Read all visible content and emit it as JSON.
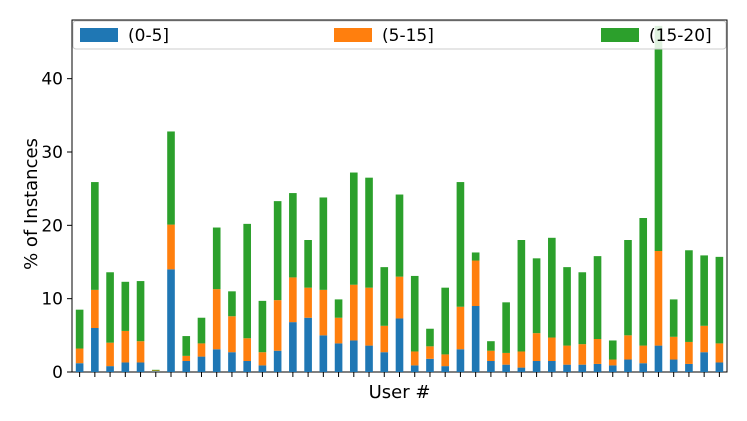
{
  "chart_data": {
    "type": "bar",
    "stacked": true,
    "xlabel": "User #",
    "ylabel": "% of Instances",
    "ylim": [
      0,
      48
    ],
    "yticks": [
      0,
      10,
      20,
      30,
      40
    ],
    "x_tick_labels": false,
    "grid": false,
    "legend_position": "top",
    "series": [
      {
        "name": "(0-5]",
        "color": "#1f77b4",
        "values": [
          1.2,
          6.0,
          0.8,
          1.3,
          1.3,
          0.1,
          14.0,
          1.5,
          2.1,
          3.1,
          2.7,
          1.5,
          0.9,
          2.9,
          6.8,
          7.4,
          5.0,
          3.9,
          4.3,
          3.6,
          2.7,
          7.3,
          0.9,
          1.8,
          0.8,
          3.1,
          9.0,
          1.5,
          1.0,
          0.6,
          1.5,
          1.5,
          1.0,
          1.0,
          1.1,
          0.9,
          1.7,
          1.2,
          3.6,
          1.7,
          1.1,
          2.7,
          1.3
        ]
      },
      {
        "name": "(5-15]",
        "color": "#ff7f0e",
        "values": [
          2.0,
          5.2,
          3.2,
          4.3,
          2.9,
          0.1,
          6.1,
          0.7,
          1.8,
          8.2,
          4.9,
          3.1,
          1.8,
          6.9,
          6.1,
          4.1,
          6.2,
          3.5,
          7.6,
          7.9,
          3.6,
          5.7,
          1.9,
          1.7,
          1.6,
          5.8,
          6.2,
          1.4,
          1.6,
          2.2,
          3.8,
          3.2,
          2.6,
          2.8,
          3.4,
          0.8,
          3.3,
          2.4,
          12.9,
          3.1,
          3.0,
          3.6,
          2.6
        ]
      },
      {
        "name": "(15-20]",
        "color": "#2ca02c",
        "values": [
          5.3,
          14.7,
          9.6,
          6.7,
          8.2,
          0.1,
          12.7,
          2.7,
          3.5,
          8.4,
          3.4,
          15.6,
          7.0,
          13.5,
          11.5,
          6.5,
          12.6,
          2.5,
          15.3,
          15.0,
          8.0,
          11.2,
          10.3,
          2.4,
          9.1,
          17.0,
          1.1,
          1.3,
          6.9,
          15.2,
          10.2,
          13.6,
          10.7,
          9.8,
          11.3,
          2.6,
          13.0,
          17.4,
          30.7,
          5.1,
          12.5,
          9.6,
          11.8
        ]
      }
    ]
  }
}
